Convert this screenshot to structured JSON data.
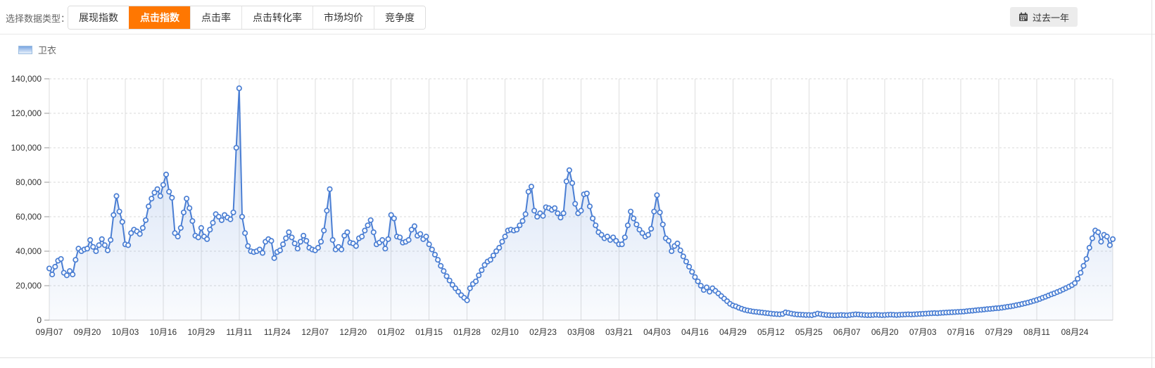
{
  "header": {
    "label": "选择数据类型：",
    "tabs": [
      {
        "id": "impression-index",
        "label": "展现指数",
        "active": false
      },
      {
        "id": "click-index",
        "label": "点击指数",
        "active": true
      },
      {
        "id": "click-rate",
        "label": "点击率",
        "active": false
      },
      {
        "id": "click-conversion-rate",
        "label": "点击转化率",
        "active": false
      },
      {
        "id": "market-avg-price",
        "label": "市场均价",
        "active": false
      },
      {
        "id": "competition",
        "label": "竞争度",
        "active": false
      }
    ],
    "range_button": {
      "label": "过去一年",
      "icon": "calendar-icon"
    },
    "active_color": "#ff7701"
  },
  "legend": [
    {
      "id": "hoodie",
      "label": "卫衣",
      "color": "#4a7ed3"
    }
  ],
  "chart_data": {
    "type": "area",
    "series_name": "卫衣",
    "line_color": "#4a7ed3",
    "marker": "circle-white-fill",
    "grid": {
      "horizontal": "dashed",
      "vertical": "solid"
    },
    "legend_position": "top-left",
    "ylim": [
      0,
      140000
    ],
    "y_ticks": [
      0,
      20000,
      40000,
      60000,
      80000,
      100000,
      120000,
      140000
    ],
    "y_tick_labels": [
      "0",
      "20,000",
      "40,000",
      "60,000",
      "80,000",
      "100,000",
      "120,000",
      "140,000"
    ],
    "x_tick_interval_days": 13,
    "x_tick_labels": [
      "09月07",
      "09月20",
      "10月03",
      "10月16",
      "10月29",
      "11月11",
      "11月24",
      "12月07",
      "12月20",
      "01月02",
      "01月15",
      "01月28",
      "02月10",
      "02月23",
      "03月08",
      "03月21",
      "04月03",
      "04月16",
      "04月29",
      "05月12",
      "05月25",
      "06月07",
      "06月20",
      "07月03",
      "07月16",
      "07月29",
      "08月11",
      "08月24"
    ],
    "notable_points": [
      {
        "label": "11月11",
        "value": 134500
      },
      {
        "label": "12月12",
        "value": 76000
      },
      {
        "label": "03月05",
        "value": 87000
      }
    ],
    "values": [
      30000,
      26500,
      31000,
      34500,
      35500,
      27500,
      26000,
      28500,
      26500,
      35000,
      41500,
      40000,
      41000,
      41500,
      46500,
      42500,
      40000,
      43500,
      47000,
      43500,
      40500,
      46500,
      61000,
      72000,
      63000,
      57000,
      44000,
      43500,
      50500,
      52500,
      51500,
      50000,
      53500,
      58000,
      66000,
      70500,
      74000,
      76000,
      72000,
      78500,
      84500,
      74500,
      71000,
      50500,
      48500,
      53500,
      62500,
      70500,
      65000,
      57500,
      49000,
      48000,
      53500,
      48500,
      47000,
      52500,
      56500,
      61500,
      60000,
      58000,
      61000,
      59500,
      58500,
      62500,
      100000,
      134500,
      60000,
      50500,
      43000,
      40000,
      39500,
      40000,
      41000,
      39000,
      45500,
      47000,
      46000,
      36000,
      39500,
      40500,
      44000,
      47500,
      51000,
      48000,
      44500,
      41500,
      45500,
      49000,
      46000,
      42000,
      41000,
      40500,
      42000,
      45500,
      52000,
      63500,
      76000,
      46500,
      41000,
      42500,
      41000,
      49000,
      51000,
      45000,
      44500,
      43000,
      47500,
      48500,
      52000,
      55000,
      58000,
      51000,
      44000,
      45000,
      46500,
      41500,
      47000,
      61000,
      59000,
      48500,
      48000,
      45000,
      45500,
      46500,
      52500,
      54500,
      49000,
      50000,
      47000,
      48500,
      44000,
      41000,
      38000,
      35000,
      31500,
      28500,
      25500,
      23000,
      20500,
      18500,
      16500,
      14500,
      13000,
      11500,
      18500,
      21000,
      22500,
      26000,
      29000,
      32000,
      34000,
      35000,
      37500,
      40000,
      42000,
      45500,
      48500,
      52000,
      52500,
      52000,
      52500,
      55000,
      57500,
      61500,
      74500,
      77500,
      63500,
      60000,
      62000,
      60500,
      65500,
      65000,
      64000,
      65000,
      62000,
      59500,
      62000,
      80500,
      87000,
      79500,
      67500,
      62000,
      63500,
      73000,
      73500,
      66000,
      59000,
      55000,
      51000,
      49500,
      47500,
      48500,
      46500,
      48000,
      46000,
      44000,
      44000,
      48000,
      55000,
      63000,
      59000,
      55500,
      52500,
      50500,
      48500,
      49500,
      53000,
      63000,
      72500,
      62500,
      55500,
      47500,
      46000,
      40000,
      43000,
      44500,
      40500,
      37000,
      34000,
      31000,
      28000,
      25000,
      22500,
      20000,
      17500,
      19000,
      16500,
      18500,
      17000,
      15500,
      14000,
      12500,
      11000,
      9500,
      8500,
      8000,
      7200,
      6600,
      6000,
      5600,
      5300,
      5000,
      4800,
      4600,
      4400,
      4200,
      4000,
      3800,
      3600,
      3500,
      3400,
      3600,
      4500,
      4200,
      3800,
      3500,
      3300,
      3200,
      3100,
      3000,
      3000,
      2900,
      3300,
      3800,
      3500,
      3200,
      3000,
      2900,
      2800,
      2800,
      2900,
      3000,
      2900,
      2800,
      3000,
      3200,
      3400,
      3300,
      3100,
      3000,
      2900,
      2900,
      3000,
      3100,
      3000,
      2900,
      3000,
      3100,
      3200,
      3100,
      3000,
      3100,
      3200,
      3300,
      3400,
      3300,
      3400,
      3500,
      3600,
      3700,
      3800,
      3900,
      4000,
      4100,
      4000,
      4200,
      4300,
      4400,
      4500,
      4600,
      4700,
      4800,
      4900,
      5000,
      5200,
      5400,
      5500,
      5700,
      5900,
      6000,
      6200,
      6400,
      6500,
      6700,
      6900,
      7000,
      7200,
      7500,
      7800,
      8000,
      8300,
      8700,
      9000,
      9400,
      9800,
      10200,
      10700,
      11200,
      11700,
      12300,
      13000,
      13600,
      14300,
      15000,
      15600,
      16300,
      17000,
      17800,
      18600,
      19400,
      20300,
      21500,
      24000,
      27500,
      31500,
      35500,
      42000,
      47500,
      52000,
      51000,
      45500,
      49500,
      48500,
      43500,
      47000
    ]
  }
}
